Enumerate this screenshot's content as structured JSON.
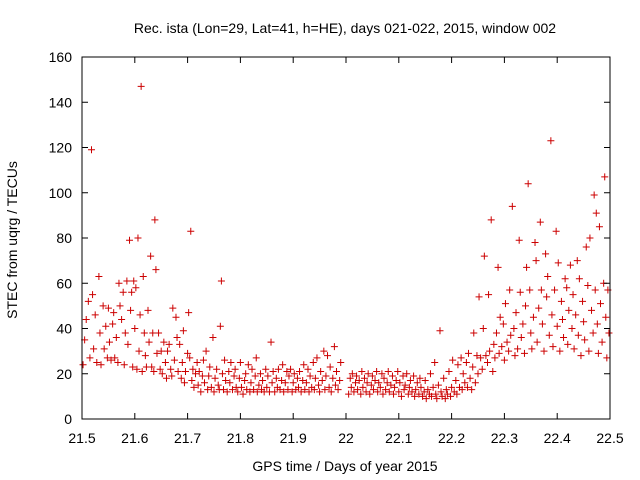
{
  "chart_data": {
    "type": "scatter",
    "title": "Rec. ista (Lon=29, Lat=41, h=HE), days 021-022, 2015, window 002",
    "xlabel": "GPS time / Days of year 2015",
    "ylabel": "STEC from uqrg / TECUs",
    "xlim": [
      21.5,
      22.5
    ],
    "ylim": [
      0,
      160
    ],
    "x_ticks": [
      "21.5",
      "21.6",
      "21.7",
      "21.8",
      "21.9",
      "22",
      "22.1",
      "22.2",
      "22.3",
      "22.4",
      "22.5"
    ],
    "y_ticks": [
      "0",
      "20",
      "40",
      "60",
      "80",
      "100",
      "120",
      "140",
      "160"
    ],
    "grid": false,
    "marker": "+",
    "colors": {
      "series": "#cc0000",
      "axis": "#000000"
    },
    "points": [
      [
        21.502,
        24
      ],
      [
        21.505,
        35
      ],
      [
        21.508,
        44
      ],
      [
        21.512,
        52
      ],
      [
        21.515,
        27
      ],
      [
        21.518,
        119
      ],
      [
        21.52,
        55
      ],
      [
        21.522,
        31
      ],
      [
        21.525,
        46
      ],
      [
        21.528,
        25
      ],
      [
        21.532,
        63
      ],
      [
        21.534,
        38
      ],
      [
        21.536,
        24
      ],
      [
        21.54,
        50
      ],
      [
        21.542,
        31
      ],
      [
        21.545,
        41
      ],
      [
        21.548,
        27
      ],
      [
        21.55,
        49
      ],
      [
        21.552,
        34
      ],
      [
        21.555,
        26
      ],
      [
        21.558,
        42
      ],
      [
        21.56,
        47
      ],
      [
        21.562,
        27
      ],
      [
        21.565,
        36
      ],
      [
        21.568,
        25
      ],
      [
        21.57,
        60
      ],
      [
        21.572,
        50
      ],
      [
        21.575,
        44
      ],
      [
        21.578,
        56
      ],
      [
        21.58,
        24
      ],
      [
        21.582,
        38
      ],
      [
        21.585,
        61
      ],
      [
        21.587,
        33
      ],
      [
        21.59,
        79
      ],
      [
        21.592,
        48
      ],
      [
        21.594,
        56
      ],
      [
        21.596,
        23
      ],
      [
        21.598,
        61
      ],
      [
        21.6,
        40
      ],
      [
        21.602,
        58
      ],
      [
        21.604,
        22
      ],
      [
        21.606,
        80
      ],
      [
        21.608,
        30
      ],
      [
        21.61,
        46
      ],
      [
        21.612,
        147
      ],
      [
        21.614,
        21
      ],
      [
        21.616,
        63
      ],
      [
        21.618,
        38
      ],
      [
        21.62,
        28
      ],
      [
        21.622,
        23
      ],
      [
        21.625,
        48
      ],
      [
        21.627,
        34
      ],
      [
        21.63,
        72
      ],
      [
        21.632,
        23
      ],
      [
        21.634,
        38
      ],
      [
        21.636,
        21
      ],
      [
        21.638,
        88
      ],
      [
        21.64,
        66
      ],
      [
        21.642,
        29
      ],
      [
        21.645,
        38
      ],
      [
        21.648,
        22
      ],
      [
        21.65,
        30
      ],
      [
        21.652,
        20
      ],
      [
        21.655,
        34
      ],
      [
        21.658,
        25
      ],
      [
        21.66,
        18
      ],
      [
        21.662,
        30
      ],
      [
        21.665,
        33
      ],
      [
        21.668,
        22
      ],
      [
        21.67,
        19
      ],
      [
        21.672,
        49
      ],
      [
        21.675,
        26
      ],
      [
        21.678,
        45
      ],
      [
        21.68,
        36
      ],
      [
        21.682,
        21
      ],
      [
        21.685,
        33
      ],
      [
        21.688,
        18
      ],
      [
        21.69,
        25
      ],
      [
        21.692,
        39
      ],
      [
        21.694,
        16
      ],
      [
        21.696,
        21
      ],
      [
        21.7,
        29
      ],
      [
        21.702,
        47
      ],
      [
        21.704,
        27
      ],
      [
        21.706,
        83
      ],
      [
        21.708,
        17
      ],
      [
        21.71,
        22
      ],
      [
        21.712,
        14
      ],
      [
        21.715,
        20
      ],
      [
        21.718,
        25
      ],
      [
        21.72,
        15
      ],
      [
        21.722,
        21
      ],
      [
        21.725,
        12
      ],
      [
        21.728,
        19
      ],
      [
        21.73,
        26
      ],
      [
        21.732,
        16
      ],
      [
        21.735,
        30
      ],
      [
        21.738,
        13
      ],
      [
        21.74,
        19
      ],
      [
        21.742,
        23
      ],
      [
        21.745,
        14
      ],
      [
        21.748,
        36
      ],
      [
        21.75,
        12
      ],
      [
        21.752,
        18
      ],
      [
        21.755,
        22
      ],
      [
        21.758,
        15
      ],
      [
        21.76,
        13
      ],
      [
        21.762,
        41
      ],
      [
        21.764,
        61
      ],
      [
        21.766,
        20
      ],
      [
        21.768,
        13
      ],
      [
        21.77,
        26
      ],
      [
        21.772,
        17
      ],
      [
        21.775,
        12
      ],
      [
        21.778,
        21
      ],
      [
        21.78,
        16
      ],
      [
        21.782,
        25
      ],
      [
        21.785,
        13
      ],
      [
        21.788,
        19
      ],
      [
        21.79,
        22
      ],
      [
        21.792,
        14
      ],
      [
        21.795,
        12
      ],
      [
        21.798,
        18
      ],
      [
        21.8,
        25
      ],
      [
        21.802,
        14
      ],
      [
        21.805,
        11
      ],
      [
        21.808,
        17
      ],
      [
        21.81,
        20
      ],
      [
        21.812,
        13
      ],
      [
        21.815,
        24
      ],
      [
        21.818,
        12
      ],
      [
        21.82,
        16
      ],
      [
        21.822,
        22
      ],
      [
        21.825,
        13
      ],
      [
        21.828,
        19
      ],
      [
        21.83,
        27
      ],
      [
        21.832,
        12
      ],
      [
        21.835,
        15
      ],
      [
        21.838,
        20
      ],
      [
        21.84,
        13
      ],
      [
        21.842,
        17
      ],
      [
        21.845,
        12
      ],
      [
        21.848,
        22
      ],
      [
        21.85,
        14
      ],
      [
        21.852,
        19
      ],
      [
        21.855,
        12
      ],
      [
        21.858,
        34
      ],
      [
        21.86,
        16
      ],
      [
        21.862,
        21
      ],
      [
        21.865,
        12
      ],
      [
        21.868,
        18
      ],
      [
        21.87,
        14
      ],
      [
        21.872,
        22
      ],
      [
        21.875,
        13
      ],
      [
        21.878,
        17
      ],
      [
        21.88,
        24
      ],
      [
        21.882,
        12
      ],
      [
        21.885,
        16
      ],
      [
        21.888,
        21
      ],
      [
        21.89,
        13
      ],
      [
        21.892,
        19
      ],
      [
        21.895,
        22
      ],
      [
        21.898,
        12
      ],
      [
        21.9,
        16
      ],
      [
        21.902,
        20
      ],
      [
        21.905,
        13
      ],
      [
        21.908,
        18
      ],
      [
        21.91,
        14
      ],
      [
        21.912,
        21
      ],
      [
        21.915,
        12
      ],
      [
        21.918,
        17
      ],
      [
        21.92,
        24
      ],
      [
        21.922,
        13
      ],
      [
        21.925,
        16
      ],
      [
        21.928,
        22
      ],
      [
        21.93,
        12
      ],
      [
        21.932,
        19
      ],
      [
        21.935,
        14
      ],
      [
        21.938,
        25
      ],
      [
        21.94,
        13
      ],
      [
        21.942,
        18
      ],
      [
        21.945,
        27
      ],
      [
        21.948,
        15
      ],
      [
        21.95,
        12
      ],
      [
        21.952,
        21
      ],
      [
        21.955,
        17
      ],
      [
        21.958,
        30
      ],
      [
        21.96,
        13
      ],
      [
        21.962,
        19
      ],
      [
        21.965,
        28
      ],
      [
        21.968,
        14
      ],
      [
        21.97,
        23
      ],
      [
        21.972,
        12
      ],
      [
        21.975,
        18
      ],
      [
        21.978,
        32
      ],
      [
        21.98,
        15
      ],
      [
        21.982,
        21
      ],
      [
        21.985,
        13
      ],
      [
        21.988,
        17
      ],
      [
        21.99,
        25
      ],
      [
        22.005,
        11
      ],
      [
        22.008,
        18
      ],
      [
        22.01,
        14
      ],
      [
        22.012,
        20
      ],
      [
        22.015,
        12
      ],
      [
        22.018,
        16
      ],
      [
        22.02,
        19
      ],
      [
        22.022,
        13
      ],
      [
        22.025,
        17
      ],
      [
        22.028,
        11
      ],
      [
        22.03,
        21
      ],
      [
        22.032,
        14
      ],
      [
        22.035,
        18
      ],
      [
        22.038,
        12
      ],
      [
        22.04,
        16
      ],
      [
        22.042,
        20
      ],
      [
        22.045,
        11
      ],
      [
        22.048,
        15
      ],
      [
        22.05,
        19
      ],
      [
        22.052,
        13
      ],
      [
        22.055,
        17
      ],
      [
        22.058,
        21
      ],
      [
        22.06,
        12
      ],
      [
        22.062,
        16
      ],
      [
        22.065,
        14
      ],
      [
        22.068,
        20
      ],
      [
        22.07,
        11
      ],
      [
        22.072,
        18
      ],
      [
        22.075,
        13
      ],
      [
        22.078,
        16
      ],
      [
        22.08,
        21
      ],
      [
        22.082,
        12
      ],
      [
        22.085,
        15
      ],
      [
        22.088,
        19
      ],
      [
        22.09,
        11
      ],
      [
        22.092,
        14
      ],
      [
        22.095,
        17
      ],
      [
        22.098,
        21
      ],
      [
        22.1,
        12
      ],
      [
        22.102,
        16
      ],
      [
        22.105,
        10
      ],
      [
        22.108,
        19
      ],
      [
        22.11,
        13
      ],
      [
        22.112,
        15
      ],
      [
        22.115,
        20
      ],
      [
        22.118,
        11
      ],
      [
        22.12,
        14
      ],
      [
        22.122,
        17
      ],
      [
        22.125,
        12
      ],
      [
        22.128,
        19
      ],
      [
        22.13,
        10
      ],
      [
        22.132,
        13
      ],
      [
        22.135,
        16
      ],
      [
        22.138,
        11
      ],
      [
        22.14,
        18
      ],
      [
        22.142,
        14
      ],
      [
        22.145,
        10
      ],
      [
        22.148,
        12
      ],
      [
        22.15,
        17
      ],
      [
        22.152,
        9
      ],
      [
        22.155,
        13
      ],
      [
        22.158,
        11
      ],
      [
        22.16,
        20
      ],
      [
        22.162,
        10
      ],
      [
        22.165,
        14
      ],
      [
        22.168,
        25
      ],
      [
        22.17,
        11
      ],
      [
        22.172,
        9
      ],
      [
        22.175,
        15
      ],
      [
        22.178,
        39
      ],
      [
        22.18,
        12
      ],
      [
        22.182,
        10
      ],
      [
        22.185,
        18
      ],
      [
        22.188,
        9
      ],
      [
        22.19,
        13
      ],
      [
        22.192,
        11
      ],
      [
        22.195,
        21
      ],
      [
        22.198,
        10
      ],
      [
        22.2,
        14
      ],
      [
        22.202,
        26
      ],
      [
        22.205,
        12
      ],
      [
        22.208,
        17
      ],
      [
        22.21,
        11
      ],
      [
        22.212,
        24
      ],
      [
        22.215,
        14
      ],
      [
        22.218,
        27
      ],
      [
        22.22,
        13
      ],
      [
        22.222,
        20
      ],
      [
        22.225,
        16
      ],
      [
        22.228,
        25
      ],
      [
        22.23,
        14
      ],
      [
        22.232,
        29
      ],
      [
        22.235,
        18
      ],
      [
        22.238,
        13
      ],
      [
        22.24,
        23
      ],
      [
        22.242,
        38
      ],
      [
        22.245,
        16
      ],
      [
        22.248,
        28
      ],
      [
        22.25,
        20
      ],
      [
        22.252,
        54
      ],
      [
        22.255,
        27
      ],
      [
        22.258,
        22
      ],
      [
        22.26,
        40
      ],
      [
        22.262,
        72
      ],
      [
        22.265,
        28
      ],
      [
        22.268,
        25
      ],
      [
        22.27,
        55
      ],
      [
        22.272,
        30
      ],
      [
        22.275,
        88
      ],
      [
        22.278,
        21
      ],
      [
        22.28,
        33
      ],
      [
        22.282,
        27
      ],
      [
        22.285,
        38
      ],
      [
        22.288,
        67
      ],
      [
        22.29,
        29
      ],
      [
        22.292,
        45
      ],
      [
        22.295,
        32
      ],
      [
        22.298,
        42
      ],
      [
        22.3,
        26
      ],
      [
        22.302,
        51
      ],
      [
        22.305,
        34
      ],
      [
        22.308,
        30
      ],
      [
        22.31,
        57
      ],
      [
        22.312,
        37
      ],
      [
        22.315,
        94
      ],
      [
        22.318,
        40
      ],
      [
        22.32,
        28
      ],
      [
        22.322,
        47
      ],
      [
        22.325,
        31
      ],
      [
        22.328,
        79
      ],
      [
        22.33,
        56
      ],
      [
        22.332,
        36
      ],
      [
        22.335,
        42
      ],
      [
        22.338,
        29
      ],
      [
        22.34,
        50
      ],
      [
        22.342,
        67
      ],
      [
        22.345,
        104
      ],
      [
        22.348,
        57
      ],
      [
        22.35,
        38
      ],
      [
        22.352,
        31
      ],
      [
        22.355,
        45
      ],
      [
        22.358,
        78
      ],
      [
        22.36,
        70
      ],
      [
        22.362,
        34
      ],
      [
        22.365,
        49
      ],
      [
        22.368,
        87
      ],
      [
        22.37,
        57
      ],
      [
        22.372,
        42
      ],
      [
        22.375,
        30
      ],
      [
        22.378,
        73
      ],
      [
        22.38,
        54
      ],
      [
        22.382,
        63
      ],
      [
        22.385,
        37
      ],
      [
        22.388,
        123
      ],
      [
        22.39,
        46
      ],
      [
        22.392,
        32
      ],
      [
        22.395,
        57
      ],
      [
        22.398,
        83
      ],
      [
        22.4,
        41
      ],
      [
        22.402,
        69
      ],
      [
        22.405,
        30
      ],
      [
        22.408,
        52
      ],
      [
        22.41,
        44
      ],
      [
        22.412,
        36
      ],
      [
        22.415,
        62
      ],
      [
        22.418,
        58
      ],
      [
        22.42,
        33
      ],
      [
        22.422,
        48
      ],
      [
        22.425,
        68
      ],
      [
        22.428,
        40
      ],
      [
        22.43,
        55
      ],
      [
        22.432,
        31
      ],
      [
        22.435,
        46
      ],
      [
        22.438,
        70
      ],
      [
        22.44,
        37
      ],
      [
        22.442,
        62
      ],
      [
        22.445,
        28
      ],
      [
        22.448,
        52
      ],
      [
        22.45,
        43
      ],
      [
        22.452,
        35
      ],
      [
        22.455,
        76
      ],
      [
        22.458,
        59
      ],
      [
        22.46,
        30
      ],
      [
        22.462,
        80
      ],
      [
        22.465,
        48
      ],
      [
        22.468,
        38
      ],
      [
        22.47,
        99
      ],
      [
        22.472,
        57
      ],
      [
        22.474,
        91
      ],
      [
        22.476,
        42
      ],
      [
        22.478,
        29
      ],
      [
        22.48,
        85
      ],
      [
        22.482,
        51
      ],
      [
        22.485,
        34
      ],
      [
        22.488,
        60
      ],
      [
        22.49,
        107
      ],
      [
        22.492,
        45
      ],
      [
        22.494,
        27
      ],
      [
        22.496,
        57
      ],
      [
        22.498,
        38
      ]
    ]
  }
}
